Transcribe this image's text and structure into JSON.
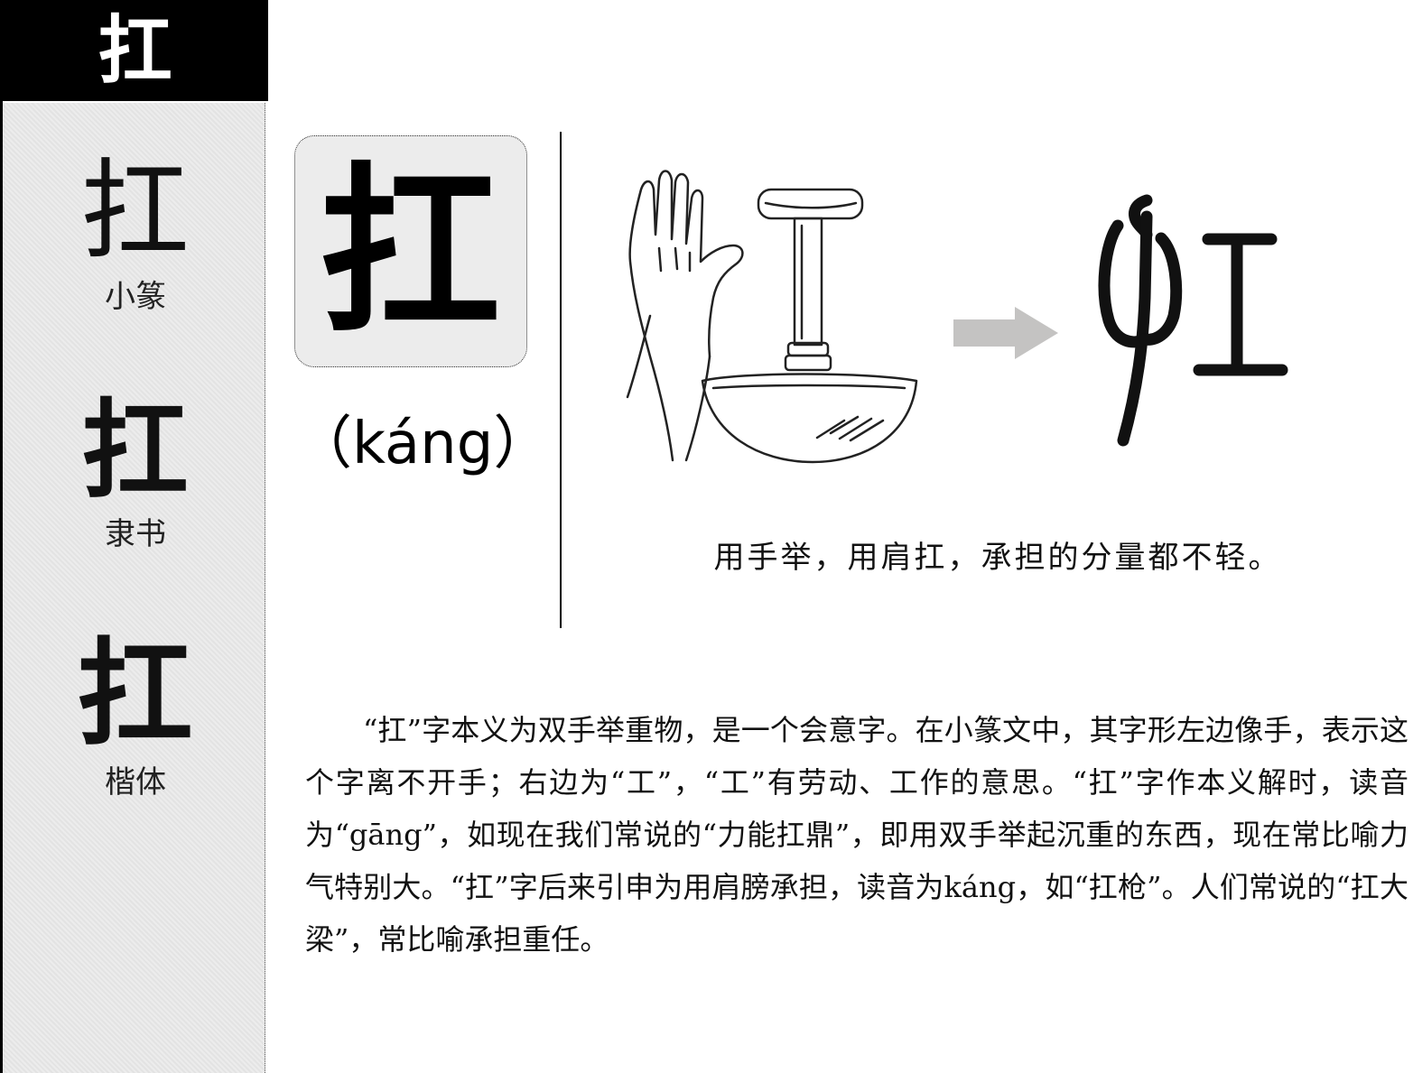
{
  "header": {
    "character": "扛"
  },
  "variants": [
    {
      "glyph": "扛",
      "label": "小篆"
    },
    {
      "glyph": "扛",
      "label": "隶书"
    },
    {
      "glyph": "扛",
      "label": "楷体"
    }
  ],
  "main": {
    "character": "扛",
    "pinyin": "（káng）",
    "illustration_icon": "hand-lifting-ding-illustration",
    "arrow_icon": "right-arrow-icon",
    "seal_icon": "seal-script-kang-glyph",
    "caption": "用手举，用肩扛，承担的分量都不轻。",
    "paragraph": "“扛”字本义为双手举重物，是一个会意字。在小篆文中，其字形左边像手，表示这个字离不开手；右边为“工”，“工”有劳动、工作的意思。“扛”字作本义解时，读音为“gāng”，如现在我们常说的“力能扛鼎”，即用双手举起沉重的东西，现在常比喻力气特别大。“扛”字后来引申为用肩膀承担，读音为káng，如“扛枪”。人们常说的“扛大梁”，常比喻承担重任。"
  }
}
